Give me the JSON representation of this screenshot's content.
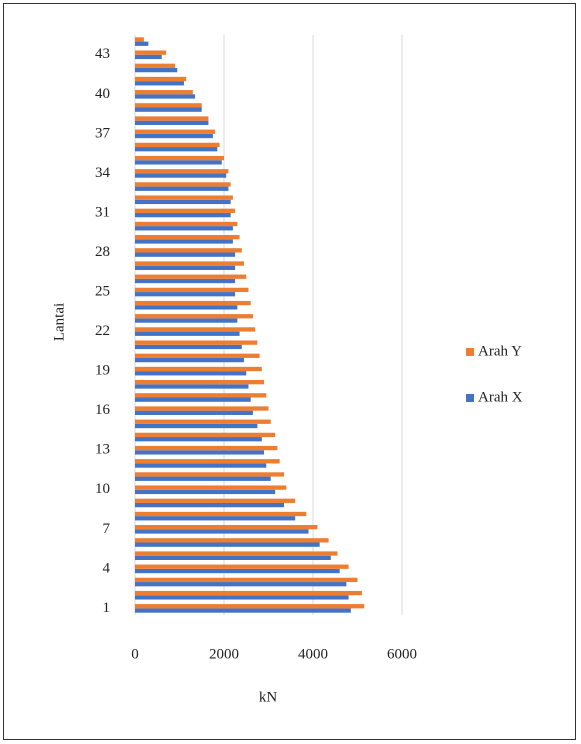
{
  "chart_data": {
    "type": "bar",
    "orientation": "horizontal",
    "x_label": "kN",
    "y_label": "Lantai",
    "categories": [
      "1",
      null,
      null,
      "4",
      null,
      null,
      "7",
      null,
      null,
      "10",
      null,
      null,
      "13",
      null,
      null,
      "16",
      null,
      null,
      "19",
      null,
      null,
      "22",
      null,
      null,
      "25",
      null,
      null,
      "28",
      null,
      null,
      "31",
      null,
      null,
      "34",
      null,
      null,
      "37",
      null,
      null,
      "40",
      null,
      null,
      "43",
      null
    ],
    "series": [
      {
        "name": "Arah X",
        "color": "#4472c4",
        "values": [
          4850,
          4800,
          4750,
          4600,
          4400,
          4150,
          3900,
          3600,
          3350,
          3150,
          3050,
          2950,
          2900,
          2850,
          2750,
          2650,
          2600,
          2550,
          2500,
          2450,
          2400,
          2350,
          2300,
          2300,
          2250,
          2250,
          2250,
          2250,
          2200,
          2200,
          2150,
          2150,
          2100,
          2050,
          1950,
          1850,
          1750,
          1650,
          1500,
          1350,
          1100,
          950,
          600,
          300
        ]
      },
      {
        "name": "Arah Y",
        "color": "#ed7d31",
        "values": [
          5150,
          5100,
          5000,
          4800,
          4550,
          4350,
          4100,
          3850,
          3600,
          3400,
          3350,
          3250,
          3200,
          3150,
          3050,
          3000,
          2950,
          2900,
          2850,
          2800,
          2750,
          2700,
          2650,
          2600,
          2550,
          2500,
          2450,
          2400,
          2350,
          2300,
          2250,
          2200,
          2150,
          2100,
          2000,
          1900,
          1800,
          1650,
          1500,
          1300,
          1150,
          900,
          700,
          200
        ]
      }
    ],
    "xlim": [
      0,
      6000
    ],
    "xticks": [
      0,
      2000,
      4000,
      6000
    ],
    "grid": true,
    "legend": "right"
  }
}
